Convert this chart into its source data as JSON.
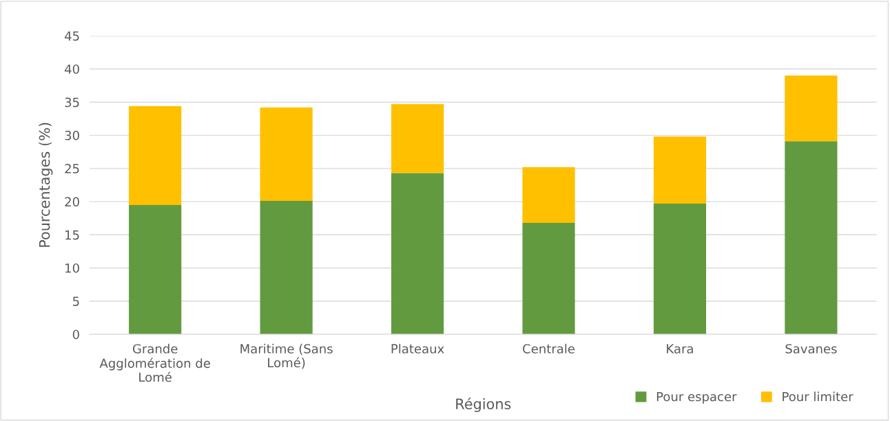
{
  "chart_data": {
    "type": "bar",
    "stacked": true,
    "xlabel": "Régions",
    "ylabel": "Pourcentages (%)",
    "categories": [
      "Grande Agglomération de Lomé",
      "Maritime (Sans Lomé)",
      "Plateaux",
      "Centrale",
      "Kara",
      "Savanes"
    ],
    "series": [
      {
        "name": "Pour espacer",
        "color": "#629b3f",
        "values": [
          19.5,
          20.1,
          24.3,
          16.8,
          19.7,
          29.1
        ]
      },
      {
        "name": "Pour limiter",
        "color": "#ffc000",
        "values": [
          14.9,
          14.1,
          10.4,
          8.4,
          10.1,
          9.9
        ]
      }
    ],
    "ylim": [
      0,
      45
    ],
    "yticks": [
      0,
      5,
      10,
      15,
      20,
      25,
      30,
      35,
      40,
      45
    ],
    "grid": "y",
    "legend": "bottom right"
  }
}
